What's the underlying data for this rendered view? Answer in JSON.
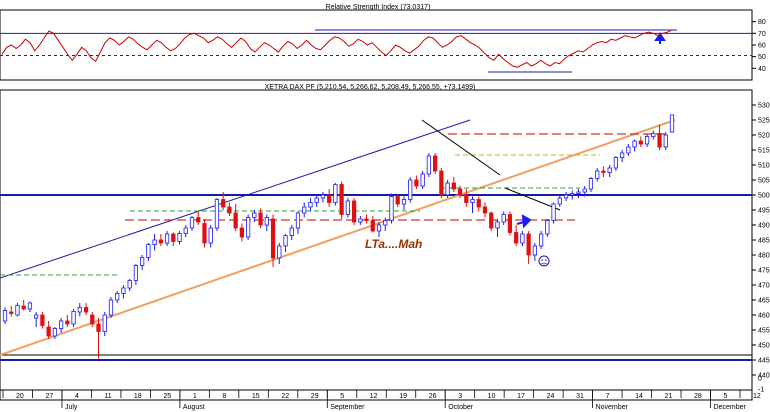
{
  "chart_data": [
    {
      "type": "line",
      "panel": "rsi",
      "title": "Relative Strength Index (73.0317)",
      "ylim": [
        30,
        90
      ],
      "yticks": [
        "40",
        "50",
        "60",
        "70",
        "80"
      ],
      "levels": [
        70,
        51
      ],
      "colors": {
        "line": "#cc0000",
        "level": "#1f1fa0",
        "frame": "#000000"
      },
      "series": [
        {
          "values": [
            52,
            58,
            60,
            57,
            60,
            65,
            62,
            55,
            60,
            66,
            72,
            70,
            64,
            58,
            52,
            47,
            52,
            58,
            55,
            49,
            46,
            54,
            62,
            66,
            64,
            60,
            63,
            67,
            65,
            61,
            58,
            56,
            60,
            64,
            62,
            58,
            55,
            57,
            61,
            66,
            69,
            70,
            68,
            66,
            62,
            64,
            67,
            65,
            61,
            58,
            62,
            66,
            63,
            57,
            54,
            58,
            62,
            60,
            57,
            54,
            59,
            63,
            61,
            57,
            60,
            64,
            60,
            57,
            56,
            60,
            64,
            67,
            66,
            63,
            59,
            61,
            65,
            63,
            60,
            62,
            58,
            54,
            51,
            55,
            60,
            58,
            55,
            53,
            56,
            59,
            64,
            67,
            66,
            62,
            58,
            60,
            63,
            67,
            68,
            65,
            62,
            60,
            57,
            53,
            49,
            47,
            52,
            48,
            45,
            42,
            41,
            43,
            45,
            42,
            44,
            47,
            44,
            42,
            45,
            44,
            48,
            51,
            53,
            55,
            54,
            57,
            60,
            62,
            63,
            62,
            65,
            64,
            66,
            68,
            67,
            66,
            68,
            70,
            71,
            70,
            68,
            70,
            71,
            73
          ]
        }
      ]
    },
    {
      "type": "candlestick",
      "panel": "price",
      "title": "XETRA DAX PF (5,210.54, 5,266.62, 5,208.49, 5,266.55, +73.1499)",
      "annotation": "LTa....Mah",
      "ylim": [
        4350,
        5350
      ],
      "yticks": [
        "4400",
        "4450",
        "4500",
        "4550",
        "4600",
        "4650",
        "4700",
        "4750",
        "4800",
        "4850",
        "4900",
        "4950",
        "5000",
        "5050",
        "5100",
        "5150",
        "5200",
        "5250",
        "5300"
      ],
      "xticks": [
        "20",
        "27",
        "4",
        "11",
        "18",
        "25",
        "1",
        "8",
        "15",
        "22",
        "29",
        "5",
        "12",
        "19",
        "26",
        "3",
        "10",
        "17",
        "24",
        "31",
        "7",
        "14",
        "21",
        "28",
        "5",
        "12"
      ],
      "months": [
        "July",
        "August",
        "September",
        "October",
        "November",
        "December"
      ],
      "horizontal_levels": [
        5000,
        4450
      ],
      "colors": {
        "up": "#1a1aff",
        "down": "#e01010",
        "trend": "#f0a060",
        "channel": "#1a1aa8",
        "support": "#cc0000",
        "support_green": "#30a030",
        "resistance_yellow": "#d0b000",
        "annotation": "#993300",
        "level": "#1a1aa8"
      },
      "candles": [
        [
          4580,
          4625,
          4570,
          4615
        ],
        [
          4610,
          4630,
          4595,
          4605
        ],
        [
          4600,
          4640,
          4595,
          4632
        ],
        [
          4630,
          4650,
          4615,
          4620
        ],
        [
          4620,
          4645,
          4610,
          4640
        ],
        [
          4590,
          4610,
          4560,
          4600
        ],
        [
          4600,
          4610,
          4555,
          4565
        ],
        [
          4560,
          4580,
          4520,
          4530
        ],
        [
          4530,
          4560,
          4520,
          4555
        ],
        [
          4555,
          4590,
          4540,
          4580
        ],
        [
          4580,
          4600,
          4560,
          4570
        ],
        [
          4570,
          4620,
          4560,
          4612
        ],
        [
          4610,
          4640,
          4595,
          4625
        ],
        [
          4625,
          4640,
          4600,
          4610
        ],
        [
          4600,
          4610,
          4560,
          4570
        ],
        [
          4570,
          4590,
          4455,
          4545
        ],
        [
          4545,
          4610,
          4530,
          4600
        ],
        [
          4600,
          4660,
          4590,
          4650
        ],
        [
          4650,
          4680,
          4640,
          4672
        ],
        [
          4672,
          4700,
          4655,
          4690
        ],
        [
          4690,
          4720,
          4680,
          4715
        ],
        [
          4715,
          4770,
          4700,
          4765
        ],
        [
          4765,
          4800,
          4750,
          4792
        ],
        [
          4792,
          4840,
          4780,
          4835
        ],
        [
          4835,
          4870,
          4815,
          4850
        ],
        [
          4850,
          4870,
          4830,
          4840
        ],
        [
          4840,
          4880,
          4830,
          4870
        ],
        [
          4870,
          4875,
          4830,
          4845
        ],
        [
          4845,
          4880,
          4835,
          4872
        ],
        [
          4872,
          4900,
          4860,
          4890
        ],
        [
          4890,
          4930,
          4880,
          4925
        ],
        [
          4925,
          4945,
          4900,
          4910
        ],
        [
          4905,
          4920,
          4825,
          4840
        ],
        [
          4840,
          4900,
          4825,
          4890
        ],
        [
          4890,
          4990,
          4880,
          4985
        ],
        [
          4985,
          5010,
          4950,
          4960
        ],
        [
          4960,
          4975,
          4930,
          4940
        ],
        [
          4940,
          4970,
          4880,
          4890
        ],
        [
          4890,
          4905,
          4845,
          4860
        ],
        [
          4860,
          4935,
          4850,
          4925
        ],
        [
          4925,
          4950,
          4910,
          4940
        ],
        [
          4940,
          4955,
          4890,
          4900
        ],
        [
          4900,
          4935,
          4880,
          4925
        ],
        [
          4920,
          4935,
          4760,
          4790
        ],
        [
          4790,
          4840,
          4770,
          4830
        ],
        [
          4830,
          4870,
          4810,
          4865
        ],
        [
          4865,
          4900,
          4850,
          4890
        ],
        [
          4890,
          4945,
          4870,
          4940
        ],
        [
          4940,
          4975,
          4925,
          4960
        ],
        [
          4960,
          4990,
          4945,
          4975
        ],
        [
          4975,
          5000,
          4960,
          4990
        ],
        [
          4990,
          5010,
          4975,
          5000
        ],
        [
          5000,
          5020,
          4960,
          4975
        ],
        [
          4975,
          5040,
          4965,
          5035
        ],
        [
          5035,
          5045,
          4920,
          4935
        ],
        [
          4935,
          4990,
          4925,
          4980
        ],
        [
          4980,
          4990,
          4900,
          4910
        ],
        [
          4910,
          4930,
          4900,
          4920
        ],
        [
          4920,
          4935,
          4905,
          4915
        ],
        [
          4915,
          4930,
          4875,
          4880
        ],
        [
          4880,
          4910,
          4860,
          4900
        ],
        [
          4900,
          4925,
          4880,
          4915
        ],
        [
          4915,
          5005,
          4905,
          4995
        ],
        [
          4995,
          5000,
          4960,
          4970
        ],
        [
          4970,
          4995,
          4950,
          4985
        ],
        [
          4985,
          5060,
          4975,
          5050
        ],
        [
          5050,
          5065,
          5020,
          5030
        ],
        [
          5030,
          5080,
          5020,
          5070
        ],
        [
          5070,
          5140,
          5060,
          5130
        ],
        [
          5130,
          5140,
          5070,
          5080
        ],
        [
          5080,
          5090,
          4990,
          5000
        ],
        [
          5000,
          5050,
          4990,
          5040
        ],
        [
          5040,
          5060,
          5010,
          5020
        ],
        [
          5020,
          5030,
          4990,
          5000
        ],
        [
          5000,
          5020,
          4960,
          4975
        ],
        [
          4975,
          4995,
          4940,
          4985
        ],
        [
          4985,
          4995,
          4945,
          4960
        ],
        [
          4960,
          4975,
          4925,
          4940
        ],
        [
          4940,
          4945,
          4880,
          4890
        ],
        [
          4890,
          4920,
          4860,
          4910
        ],
        [
          4910,
          4945,
          4900,
          4935
        ],
        [
          4935,
          4945,
          4865,
          4875
        ],
        [
          4875,
          4900,
          4830,
          4840
        ],
        [
          4840,
          4880,
          4830,
          4870
        ],
        [
          4870,
          4880,
          4770,
          4800
        ],
        [
          4800,
          4840,
          4780,
          4830
        ],
        [
          4830,
          4880,
          4820,
          4870
        ],
        [
          4870,
          4920,
          4860,
          4915
        ],
        [
          4915,
          4975,
          4905,
          4970
        ],
        [
          4970,
          5000,
          4960,
          4990
        ],
        [
          4990,
          5010,
          4980,
          5000
        ],
        [
          5000,
          5015,
          4985,
          5005
        ],
        [
          5005,
          5020,
          4990,
          5010
        ],
        [
          5010,
          5030,
          4995,
          5020
        ],
        [
          5020,
          5060,
          5010,
          5055
        ],
        [
          5055,
          5090,
          5045,
          5080
        ],
        [
          5080,
          5095,
          5060,
          5075
        ],
        [
          5075,
          5100,
          5060,
          5090
        ],
        [
          5090,
          5130,
          5080,
          5125
        ],
        [
          5125,
          5150,
          5110,
          5140
        ],
        [
          5140,
          5170,
          5130,
          5160
        ],
        [
          5160,
          5185,
          5145,
          5180
        ],
        [
          5180,
          5195,
          5160,
          5170
        ],
        [
          5170,
          5205,
          5160,
          5195
        ],
        [
          5195,
          5215,
          5185,
          5205
        ],
        [
          5205,
          5235,
          5150,
          5160
        ],
        [
          5160,
          5210,
          5150,
          5200
        ],
        [
          5210,
          5267,
          5208,
          5267
        ]
      ]
    }
  ]
}
